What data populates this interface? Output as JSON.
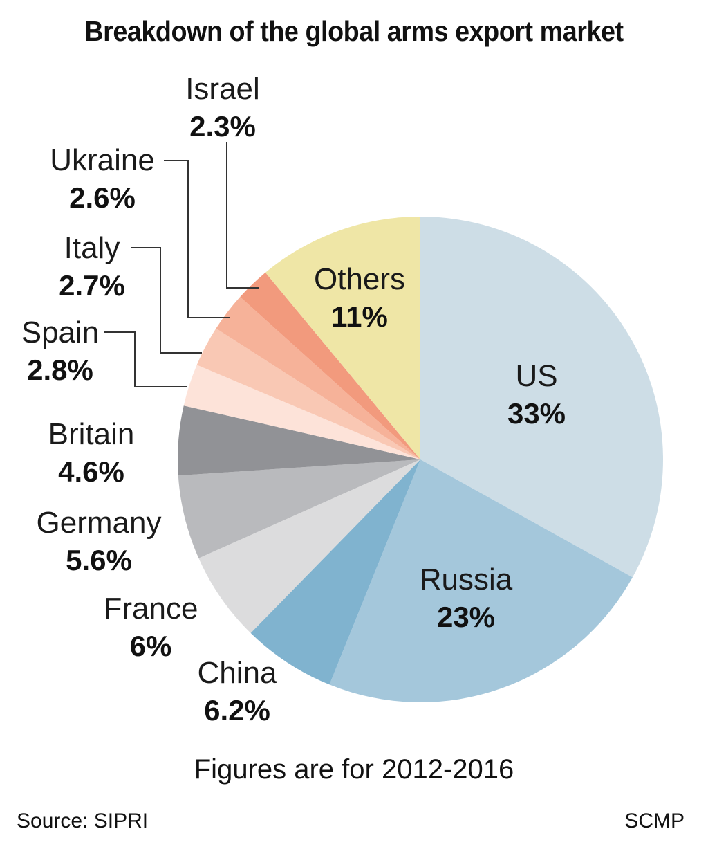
{
  "title": "Breakdown of the global arms export market",
  "note": "Figures are for 2012-2016",
  "source": "Source: SIPRI",
  "credit": "SCMP",
  "chart_data": {
    "type": "pie",
    "title": "Breakdown of the global arms export market",
    "unit": "%",
    "slices": [
      {
        "name": "US",
        "value": 33,
        "label": "33%",
        "color": "#cddde6"
      },
      {
        "name": "Russia",
        "value": 23,
        "label": "23%",
        "color": "#a4c7db"
      },
      {
        "name": "China",
        "value": 6.2,
        "label": "6.2%",
        "color": "#80b3cf"
      },
      {
        "name": "France",
        "value": 6,
        "label": "6%",
        "color": "#dcdcdd"
      },
      {
        "name": "Germany",
        "value": 5.6,
        "label": "5.6%",
        "color": "#b9babd"
      },
      {
        "name": "Britain",
        "value": 4.6,
        "label": "4.6%",
        "color": "#919296"
      },
      {
        "name": "Spain",
        "value": 2.8,
        "label": "2.8%",
        "color": "#fde3d9"
      },
      {
        "name": "Italy",
        "value": 2.7,
        "label": "2.7%",
        "color": "#f9c8b4"
      },
      {
        "name": "Ukraine",
        "value": 2.6,
        "label": "2.6%",
        "color": "#f6b299"
      },
      {
        "name": "Israel",
        "value": 2.3,
        "label": "2.3%",
        "color": "#f29a7d"
      },
      {
        "name": "Others",
        "value": 11,
        "label": "11%",
        "color": "#efe6a6"
      }
    ]
  }
}
